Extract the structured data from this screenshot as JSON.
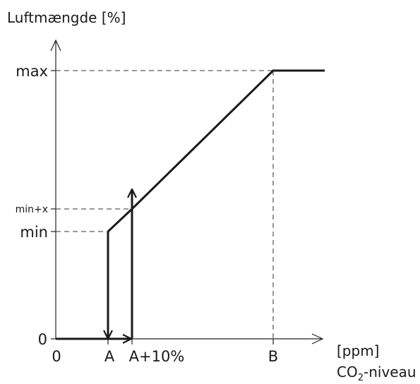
{
  "chart_data": {
    "type": "line",
    "ylabel": "Luftmængde [%]",
    "xlabel_unit": "[ppm]",
    "xlabel_main": "CO",
    "xlabel_sub": "2",
    "xlabel_suffix": "-niveau",
    "x_ticks": [
      {
        "key": "zero",
        "label": "0"
      },
      {
        "key": "a",
        "label": "A"
      },
      {
        "key": "a10",
        "label": "A+10%"
      },
      {
        "key": "b",
        "label": "B"
      }
    ],
    "y_ticks": [
      {
        "key": "zero",
        "label": "0"
      },
      {
        "key": "min",
        "label": "min"
      },
      {
        "key": "minx",
        "label": "min+x"
      },
      {
        "key": "max",
        "label": "max"
      }
    ],
    "grid": false
  }
}
